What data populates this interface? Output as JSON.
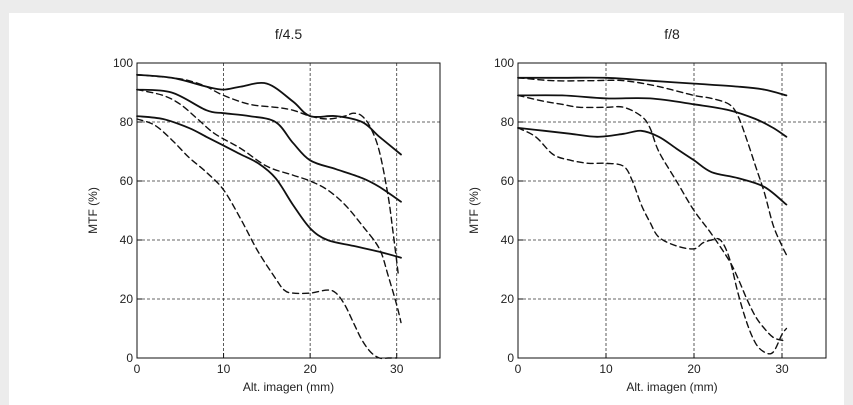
{
  "chart_data": [
    {
      "type": "line",
      "title": "f/4.5",
      "xlabel": "Alt. imagen (mm)",
      "ylabel": "MTF (%)",
      "xlim": [
        0,
        35
      ],
      "ylim": [
        0,
        100
      ],
      "xticks": [
        0,
        10,
        20,
        30
      ],
      "yticks": [
        0,
        20,
        40,
        60,
        80,
        100
      ],
      "grid": true,
      "series": [
        {
          "style": "solid",
          "x": [
            0,
            4,
            8,
            10,
            12,
            15,
            18,
            20,
            23,
            26,
            28,
            30.5
          ],
          "values": [
            96,
            95,
            92,
            91,
            92,
            93,
            87,
            82,
            82,
            80,
            75,
            69
          ]
        },
        {
          "style": "solid",
          "x": [
            0,
            4,
            8,
            10,
            13,
            16,
            18,
            20,
            23,
            26,
            28,
            30.5
          ],
          "values": [
            91,
            90,
            84,
            83,
            82,
            80,
            73,
            67,
            64,
            61,
            58,
            53
          ]
        },
        {
          "style": "solid",
          "x": [
            0,
            3,
            6,
            8,
            10,
            12,
            14,
            16,
            18,
            20,
            22,
            25,
            28,
            30.5
          ],
          "values": [
            82,
            81,
            78,
            75,
            72,
            69,
            66,
            61,
            52,
            44,
            40,
            38,
            36,
            34
          ]
        },
        {
          "style": "dashed",
          "x": [
            0,
            4,
            6,
            8,
            10,
            13,
            16,
            18,
            20,
            22,
            24,
            25,
            26,
            27,
            28,
            29,
            29.6,
            30.2
          ],
          "values": [
            96,
            95,
            94,
            92,
            89,
            86,
            85,
            84,
            82,
            81,
            82,
            83,
            82,
            78,
            70,
            55,
            42,
            28
          ]
        },
        {
          "style": "dashed",
          "x": [
            0,
            3,
            5,
            7,
            9,
            12,
            15,
            18,
            20,
            22,
            24,
            26,
            28,
            29,
            30,
            30.5
          ],
          "values": [
            91,
            89,
            86,
            81,
            76,
            71,
            65,
            62,
            60,
            57,
            52,
            45,
            37,
            28,
            18,
            12
          ]
        },
        {
          "style": "dashed",
          "x": [
            0,
            2,
            4,
            6,
            8,
            10,
            12,
            14,
            16,
            17,
            18,
            20,
            22,
            23,
            24,
            25,
            26,
            27,
            28,
            29,
            30
          ],
          "values": [
            81,
            79,
            74,
            68,
            63,
            57,
            47,
            36,
            27,
            23,
            22,
            22,
            23,
            22,
            18,
            12,
            6,
            2,
            0,
            0,
            0
          ]
        }
      ]
    },
    {
      "type": "line",
      "title": "f/8",
      "xlabel": "Alt. imagen (mm)",
      "ylabel": "MTF (%)",
      "xlim": [
        0,
        35
      ],
      "ylim": [
        0,
        100
      ],
      "xticks": [
        0,
        10,
        20,
        30
      ],
      "yticks": [
        0,
        20,
        40,
        60,
        80,
        100
      ],
      "grid": true,
      "series": [
        {
          "style": "solid",
          "x": [
            0,
            5,
            10,
            15,
            20,
            25,
            28,
            30.5
          ],
          "values": [
            95,
            95,
            95,
            94,
            93,
            92,
            91,
            89
          ]
        },
        {
          "style": "solid",
          "x": [
            0,
            5,
            10,
            15,
            20,
            24,
            27,
            29,
            30.5
          ],
          "values": [
            89,
            89,
            88,
            88,
            86,
            84,
            81,
            78,
            75
          ]
        },
        {
          "style": "solid",
          "x": [
            0,
            3,
            6,
            9,
            12,
            14,
            16,
            18,
            20,
            22,
            25,
            28,
            30.5
          ],
          "values": [
            78,
            77,
            76,
            75,
            76,
            77,
            75,
            71,
            67,
            63,
            61,
            58,
            52
          ]
        },
        {
          "style": "dashed",
          "x": [
            0,
            4,
            8,
            12,
            16,
            20,
            22,
            24,
            25,
            26,
            27,
            28,
            29,
            30,
            30.5
          ],
          "values": [
            95,
            94,
            94,
            94,
            92,
            89,
            88,
            86,
            82,
            74,
            65,
            56,
            45,
            38,
            35
          ]
        },
        {
          "style": "dashed",
          "x": [
            0,
            3,
            5,
            7,
            10,
            12,
            14,
            15,
            16,
            18,
            20,
            22,
            24,
            25,
            26,
            27,
            28,
            29,
            30,
            30.5
          ],
          "values": [
            89,
            87,
            86,
            85,
            85,
            85,
            82,
            78,
            70,
            60,
            50,
            42,
            33,
            27,
            20,
            14,
            10,
            7,
            6,
            6
          ]
        },
        {
          "style": "dashed",
          "x": [
            0,
            2,
            4,
            6,
            8,
            10,
            12,
            13,
            14,
            15,
            16,
            18,
            20,
            21,
            22,
            23,
            24,
            25,
            26,
            27,
            28,
            29,
            30,
            30.5
          ],
          "values": [
            78,
            75,
            69,
            67,
            66,
            66,
            65,
            60,
            52,
            46,
            41,
            38,
            37,
            39,
            40,
            40,
            34,
            22,
            12,
            5,
            2,
            2,
            8,
            10
          ]
        }
      ]
    }
  ]
}
